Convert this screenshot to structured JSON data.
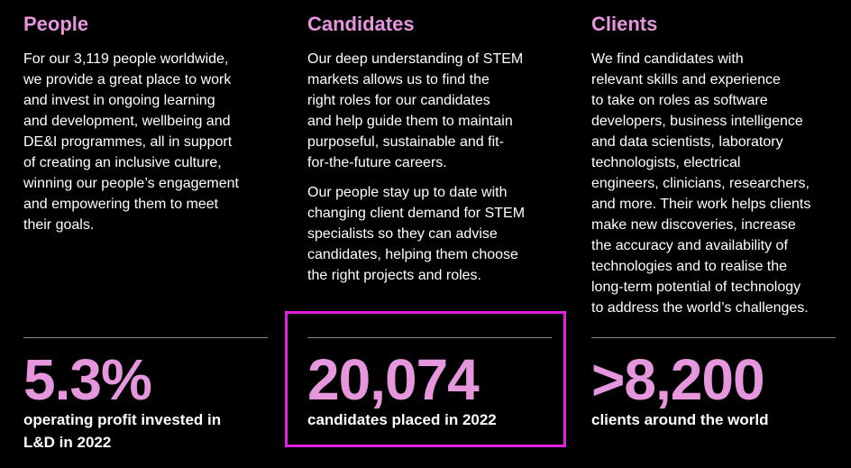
{
  "columns": [
    {
      "title": "People",
      "paragraphs": [
        [
          "For our 3,119 people worldwide,",
          "we provide a great place to work",
          "and invest in ongoing learning",
          "and development, wellbeing and",
          "DE&I programmes, all in support",
          "of creating an inclusive culture,",
          "winning our people’s engagement",
          "and empowering them to meet",
          "their goals."
        ]
      ],
      "stat": {
        "value": "5.3%",
        "label": [
          "operating profit invested in",
          "L&D in 2022"
        ]
      }
    },
    {
      "title": "Candidates",
      "paragraphs": [
        [
          "Our deep understanding of STEM",
          "markets allows us to find the",
          "right roles for our candidates",
          "and help guide them to maintain",
          "purposeful, sustainable and fit-",
          "for-the-future careers."
        ],
        [
          "Our people stay up to date with",
          "changing client demand for STEM",
          "specialists so they can advise",
          "candidates, helping them choose",
          "the right projects and roles."
        ]
      ],
      "stat": {
        "value": "20,074",
        "label": [
          "candidates placed in 2022"
        ]
      }
    },
    {
      "title": "Clients",
      "paragraphs": [
        [
          "We find candidates with",
          "relevant skills and experience",
          "to take on roles as software",
          "developers, business intelligence",
          "and data scientists, laboratory",
          "technologists, electrical",
          "engineers, clinicians, researchers,",
          "and more. Their work helps clients",
          "make new discoveries, increase",
          "the accuracy and availability of",
          "technologies and to realise the",
          "long-term potential of technology",
          "to address the world’s challenges."
        ]
      ],
      "stat": {
        "value": ">8,200",
        "label": [
          "clients around the world"
        ]
      }
    }
  ]
}
